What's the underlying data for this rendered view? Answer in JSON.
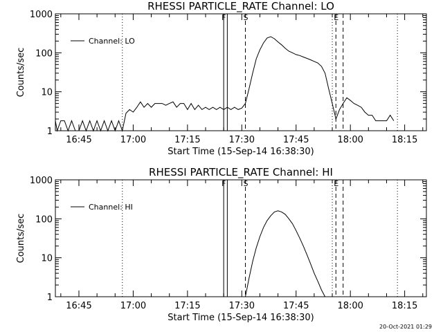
{
  "footer": {
    "timestamp": "20-Oct-2021 01:29"
  },
  "chart_data": [
    {
      "type": "line",
      "title": "RHESSI PARTICLE_RATE Channel: LO",
      "xlabel": "Start Time (15-Sep-14 16:38:30)",
      "ylabel": "Counts/sec",
      "yscale": "log",
      "xlim": [
        "16:38:30",
        "18:21:00"
      ],
      "ylim": [
        1,
        1000
      ],
      "x_ticks": [
        "16:45",
        "17:00",
        "17:15",
        "17:30",
        "17:45",
        "18:00",
        "18:15"
      ],
      "y_ticks": [
        "1",
        "10",
        "100",
        "1000"
      ],
      "legend": {
        "position": "top-left"
      },
      "markers": [
        {
          "label": "F",
          "time": "17:25",
          "style": "solid"
        },
        {
          "label": "",
          "time": "17:26",
          "style": "solid"
        },
        {
          "label": "S",
          "time": "17:31",
          "style": "dashed"
        },
        {
          "label": "E",
          "time": "17:56",
          "style": "dashed"
        },
        {
          "label": "",
          "time": "17:58",
          "style": "dashed"
        },
        {
          "label": "",
          "time": "16:57",
          "style": "dotted"
        },
        {
          "label": "",
          "time": "17:55",
          "style": "dotted"
        },
        {
          "label": "",
          "time": "18:13",
          "style": "dotted"
        }
      ],
      "series": [
        {
          "name": "Channel: LO",
          "x": [
            "16:38",
            "16:39",
            "16:40",
            "16:41",
            "16:42",
            "16:43",
            "16:44",
            "16:45",
            "16:46",
            "16:47",
            "16:48",
            "16:49",
            "16:50",
            "16:51",
            "16:52",
            "16:53",
            "16:54",
            "16:55",
            "16:56",
            "16:57",
            "16:58",
            "16:59",
            "17:00",
            "17:01",
            "17:02",
            "17:03",
            "17:04",
            "17:05",
            "17:06",
            "17:07",
            "17:08",
            "17:09",
            "17:10",
            "17:11",
            "17:12",
            "17:13",
            "17:14",
            "17:15",
            "17:16",
            "17:17",
            "17:18",
            "17:19",
            "17:20",
            "17:21",
            "17:22",
            "17:23",
            "17:24",
            "17:25",
            "17:26",
            "17:27",
            "17:28",
            "17:29",
            "17:30",
            "17:31",
            "17:32",
            "17:33",
            "17:34",
            "17:35",
            "17:36",
            "17:37",
            "17:38",
            "17:39",
            "17:40",
            "17:41",
            "17:42",
            "17:43",
            "17:44",
            "17:45",
            "17:46",
            "17:47",
            "17:48",
            "17:49",
            "17:50",
            "17:51",
            "17:52",
            "17:53",
            "17:54",
            "17:55",
            "17:56",
            "17:57",
            "17:58",
            "17:59",
            "18:00",
            "18:01",
            "18:02",
            "18:03",
            "18:04",
            "18:05",
            "18:06",
            "18:07",
            "18:08",
            "18:09",
            "18:10",
            "18:11",
            "18:12"
          ],
          "y": [
            1.8,
            1.0,
            1.8,
            1.8,
            1.0,
            1.8,
            1.0,
            1.0,
            1.8,
            1.0,
            1.8,
            1.0,
            1.8,
            1.0,
            1.8,
            1.0,
            1.8,
            1.0,
            1.8,
            1.0,
            2.8,
            3.5,
            3.0,
            4.0,
            5.5,
            4.0,
            5.0,
            4.0,
            5.0,
            5.0,
            5.0,
            4.5,
            5.0,
            5.5,
            4.0,
            5.0,
            5.0,
            3.5,
            5.0,
            3.5,
            4.5,
            3.5,
            4.0,
            3.5,
            4.0,
            3.5,
            4.0,
            3.5,
            4.0,
            3.5,
            4.0,
            3.5,
            3.8,
            5.0,
            12,
            30,
            70,
            120,
            180,
            240,
            260,
            230,
            190,
            160,
            130,
            110,
            100,
            90,
            85,
            78,
            72,
            66,
            60,
            55,
            45,
            30,
            12,
            5,
            2.0,
            3.5,
            5.0,
            7.0,
            6.0,
            5.0,
            4.5,
            4.0,
            3.0,
            2.5,
            2.5,
            1.8,
            1.8,
            1.8,
            1.8,
            2.5,
            1.8
          ]
        }
      ]
    },
    {
      "type": "line",
      "title": "RHESSI PARTICLE_RATE Channel: HI",
      "xlabel": "Start Time (15-Sep-14 16:38:30)",
      "ylabel": "Counts/sec",
      "yscale": "log",
      "xlim": [
        "16:38:30",
        "18:21:00"
      ],
      "ylim": [
        1,
        1000
      ],
      "x_ticks": [
        "16:45",
        "17:00",
        "17:15",
        "17:30",
        "17:45",
        "18:00",
        "18:15"
      ],
      "y_ticks": [
        "1",
        "10",
        "100",
        "1000"
      ],
      "legend": {
        "position": "top-left"
      },
      "markers": [
        {
          "label": "F",
          "time": "17:25",
          "style": "solid"
        },
        {
          "label": "",
          "time": "17:26",
          "style": "solid"
        },
        {
          "label": "S",
          "time": "17:31",
          "style": "dashed"
        },
        {
          "label": "E",
          "time": "17:56",
          "style": "dashed"
        },
        {
          "label": "",
          "time": "17:58",
          "style": "dashed"
        },
        {
          "label": "",
          "time": "16:57",
          "style": "dotted"
        },
        {
          "label": "",
          "time": "17:55",
          "style": "dotted"
        },
        {
          "label": "",
          "time": "18:13",
          "style": "dotted"
        }
      ],
      "series": [
        {
          "name": "Channel: HI",
          "x": [
            "17:31",
            "17:32",
            "17:33",
            "17:34",
            "17:35",
            "17:36",
            "17:37",
            "17:38",
            "17:39",
            "17:40",
            "17:41",
            "17:42",
            "17:43",
            "17:44",
            "17:45",
            "17:46",
            "17:47",
            "17:48",
            "17:49",
            "17:50",
            "17:51",
            "17:52",
            "17:53"
          ],
          "y": [
            1.0,
            3,
            8,
            18,
            35,
            60,
            90,
            120,
            150,
            160,
            150,
            130,
            100,
            75,
            50,
            32,
            20,
            12,
            7,
            4,
            2.5,
            1.5,
            1.0
          ]
        }
      ]
    }
  ]
}
